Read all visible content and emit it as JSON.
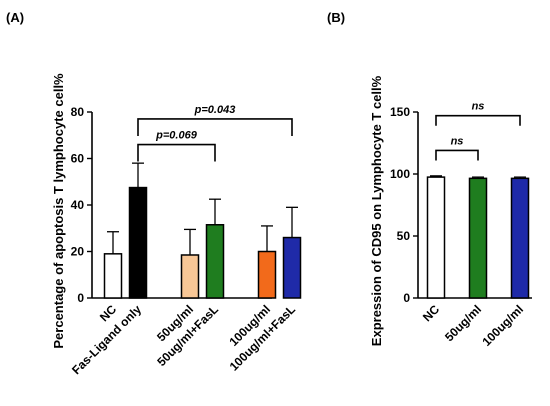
{
  "chart_data": [
    {
      "panel": "(A)",
      "type": "bar",
      "ylabel": "Percentage of apoptosis T lymphocyte cell%",
      "ylim": [
        0,
        80
      ],
      "yticks": [
        0,
        20,
        40,
        60,
        80
      ],
      "categories": [
        "NC",
        "Fas-Ligand only",
        "50ug/ml",
        "50ug/ml+FasL",
        "100ug/ml",
        "100ug/ml+FasL"
      ],
      "values": [
        19,
        47.5,
        18.5,
        31.5,
        20,
        26
      ],
      "errors": [
        9.5,
        10.5,
        11,
        11,
        11,
        13
      ],
      "group": [
        0,
        0,
        1,
        1,
        2,
        2
      ],
      "colors": [
        "#ffffff",
        "#000000",
        "#f8c796",
        "#1f7d1f",
        "#f26a1b",
        "#1f2aa8"
      ],
      "comparisons": [
        {
          "from": 1,
          "to": 3,
          "label": "p=0.069",
          "y": 66
        },
        {
          "from": 1,
          "to": 5,
          "label": "p=0.043",
          "y": 77
        }
      ]
    },
    {
      "panel": "(B)",
      "type": "bar",
      "ylabel": "Expression of  CD95 on Lymphocyte  T cell%",
      "ylim": [
        0,
        150
      ],
      "yticks": [
        0,
        50,
        100,
        150
      ],
      "categories": [
        "NC",
        "50ug/ml",
        "100ug/ml"
      ],
      "values": [
        97.5,
        96.5,
        96.5
      ],
      "errors": [
        1,
        1,
        1
      ],
      "colors": [
        "#ffffff",
        "#1f7d1f",
        "#1f2aa8"
      ],
      "comparisons": [
        {
          "from": 0,
          "to": 1,
          "label": "ns",
          "y": 119
        },
        {
          "from": 0,
          "to": 2,
          "label": "ns",
          "y": 147
        }
      ]
    }
  ]
}
